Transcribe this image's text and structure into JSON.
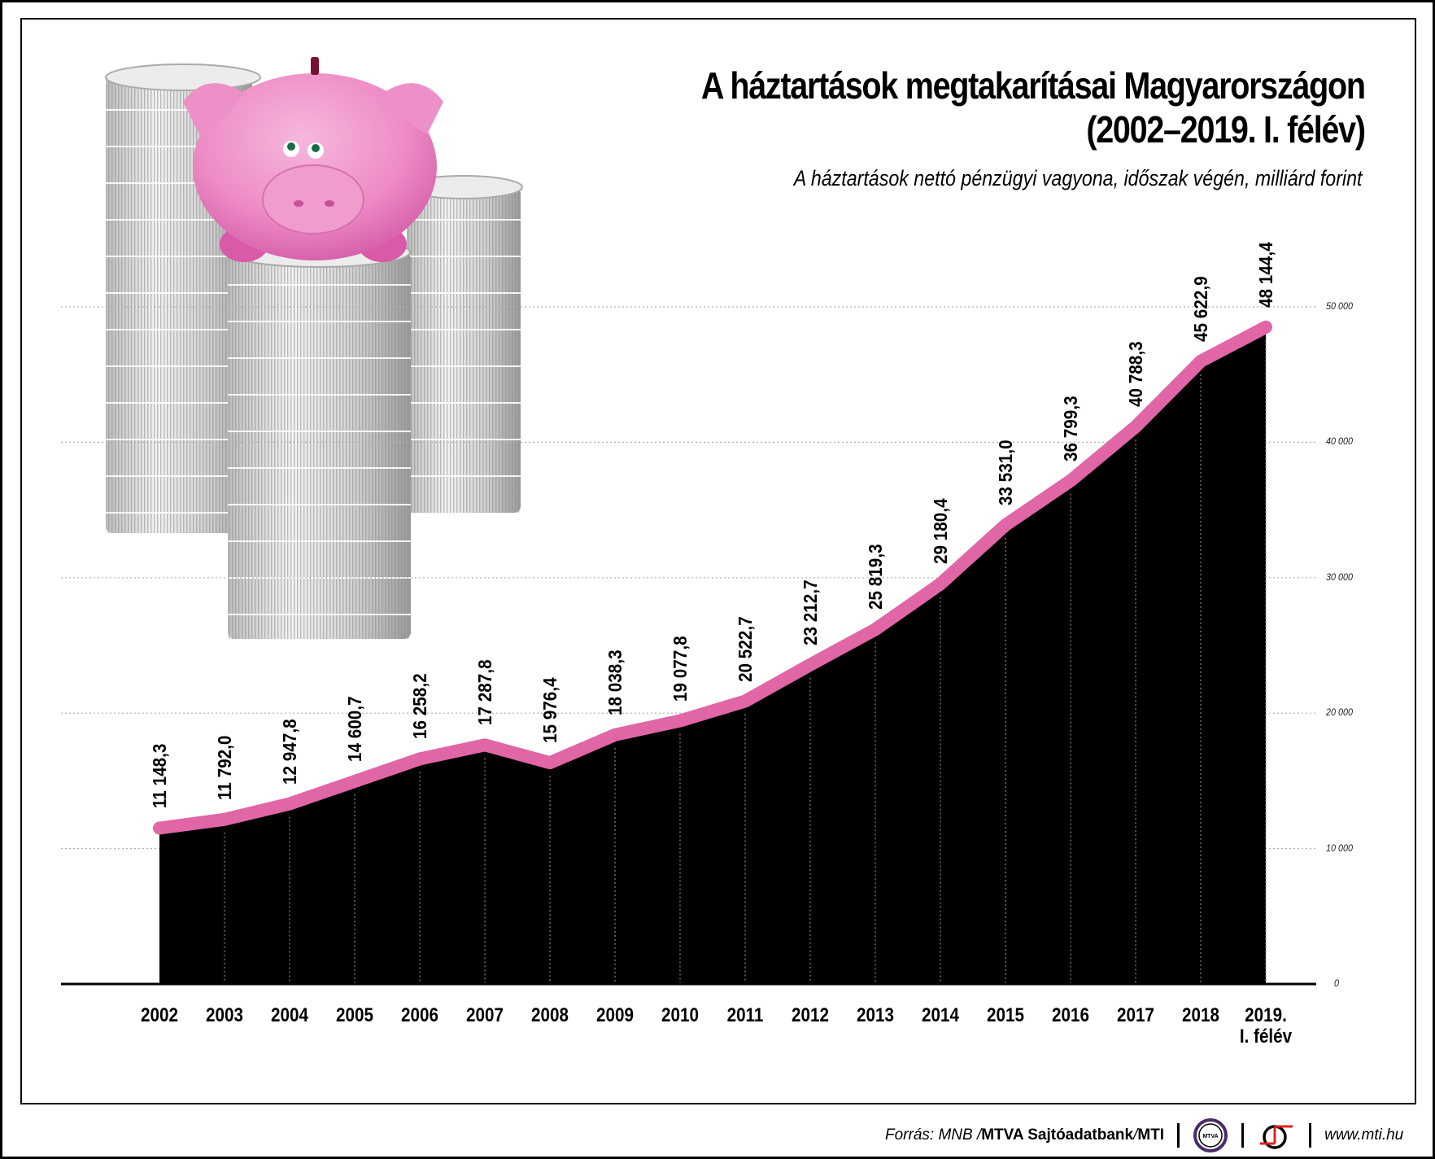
{
  "title_line1": "A háztartások megtakarításai Magyarországon",
  "title_line2": "(2002–2019. I. félév)",
  "subtitle": "A háztartások nettó pénzügyi vagyona, időszak végén, milliárd forint",
  "colors": {
    "line": "#e066a6",
    "area": "#000000",
    "grid": "#b0b0b0",
    "frame": "#000000",
    "mtva_ring": "#4a2a6a",
    "mti_red": "#e02020"
  },
  "y_ticks": [
    {
      "label": "50 000",
      "value": 50000
    },
    {
      "label": "40 000",
      "value": 40000
    },
    {
      "label": "30 000",
      "value": 30000
    },
    {
      "label": "20 000",
      "value": 20000
    },
    {
      "label": "10 000",
      "value": 10000
    },
    {
      "label": "0",
      "value": 0
    }
  ],
  "x_labels": [
    "2002",
    "2003",
    "2004",
    "2005",
    "2006",
    "2007",
    "2008",
    "2009",
    "2010",
    "2011",
    "2012",
    "2013",
    "2014",
    "2015",
    "2016",
    "2017",
    "2018",
    "2019."
  ],
  "x_label_last_line2": "I. félév",
  "value_labels": [
    "11 148,3",
    "11 792,0",
    "12 947,8",
    "14 600,7",
    "16 258,2",
    "17 287,8",
    "15 976,4",
    "18 038,3",
    "19 077,8",
    "20 522,7",
    "23 212,7",
    "25 819,3",
    "29 180,4",
    "33 531,0",
    "36 799,3",
    "40 788,3",
    "45 622,9",
    "48 144,4"
  ],
  "footer": {
    "source_prefix": "Forrás: MNB / ",
    "source_bold": "MTVA Sajtóadatbank",
    "source_sep": " / ",
    "source_bold2": "MTI",
    "mtva_logo_text": "MTVA",
    "url": "www.mti.hu"
  },
  "chart_data": {
    "type": "area",
    "title": "A háztartások megtakarításai Magyarországon (2002–2019. I. félév)",
    "subtitle": "A háztartások nettó pénzügyi vagyona, időszak végén, milliárd forint",
    "xlabel": "",
    "ylabel": "milliárd forint",
    "categories": [
      "2002",
      "2003",
      "2004",
      "2005",
      "2006",
      "2007",
      "2008",
      "2009",
      "2010",
      "2011",
      "2012",
      "2013",
      "2014",
      "2015",
      "2016",
      "2017",
      "2018",
      "2019. I. félév"
    ],
    "series": [
      {
        "name": "Nettó pénzügyi vagyon",
        "values": [
          11148.3,
          11792.0,
          12947.8,
          14600.7,
          16258.2,
          17287.8,
          15976.4,
          18038.3,
          19077.8,
          20522.7,
          23212.7,
          25819.3,
          29180.4,
          33531.0,
          36799.3,
          40788.3,
          45622.9,
          48144.4
        ]
      }
    ],
    "ylim": [
      0,
      50000
    ],
    "y_ticks": [
      0,
      10000,
      20000,
      30000,
      40000,
      50000
    ],
    "y_axis_position": "right",
    "grid": "horizontal dotted",
    "legend": "none",
    "data_labels": "rotated vertical above each point"
  },
  "source": "Forrás: MNB / MTVA Sajtóadatbank / MTI"
}
